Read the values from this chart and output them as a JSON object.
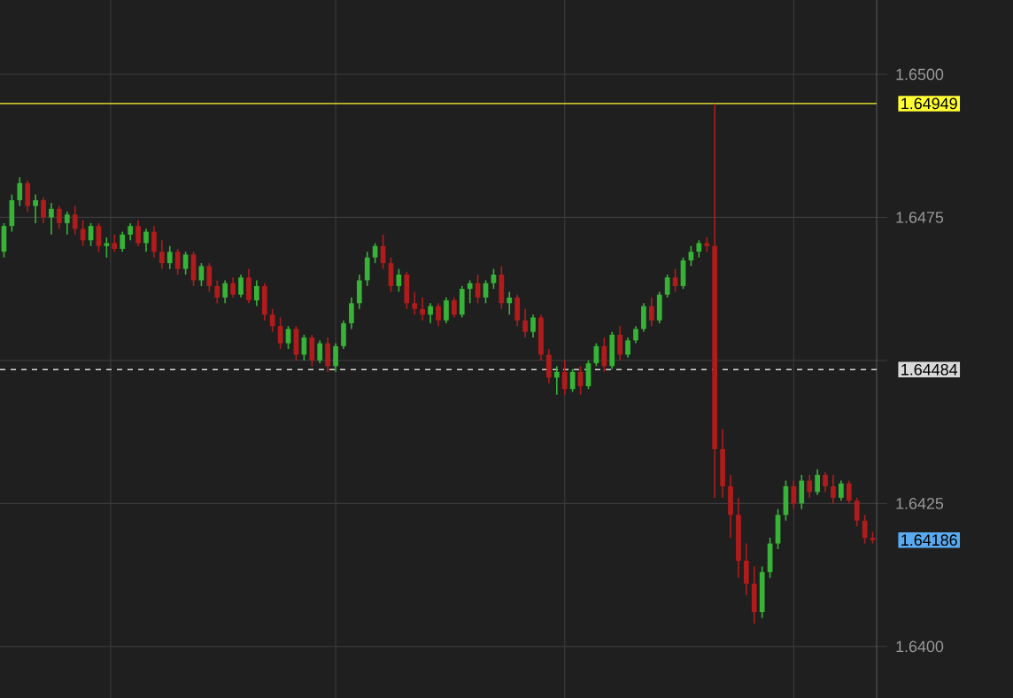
{
  "chart_data": {
    "type": "candlestick",
    "categories": [
      null,
      null,
      null,
      null,
      null,
      null,
      null,
      null,
      null,
      null,
      null,
      null,
      null,
      null,
      null,
      null,
      null,
      null,
      null,
      null,
      null,
      null,
      null,
      null,
      null,
      null,
      null,
      null,
      null,
      null,
      null,
      null,
      null,
      null,
      null,
      null,
      null,
      null,
      null,
      null,
      null,
      null,
      null,
      null,
      null,
      null,
      null,
      null,
      null,
      null,
      null,
      null,
      null,
      null,
      null,
      null,
      null,
      null,
      null,
      null,
      null,
      null,
      null,
      null,
      null,
      null,
      null,
      null,
      null,
      null,
      null,
      null,
      null,
      null,
      null,
      null,
      null,
      null,
      null,
      null,
      null,
      null,
      null,
      null,
      null,
      null,
      null,
      null,
      null,
      null,
      null,
      null,
      null,
      null,
      null,
      null,
      null,
      null,
      null,
      null,
      null,
      null,
      null,
      null,
      null,
      null,
      null,
      null,
      null,
      null,
      null
    ],
    "ohlc": [
      [
        1.6469,
        1.6474,
        1.6468,
        1.64735
      ],
      [
        1.64735,
        1.6479,
        1.64725,
        1.6478
      ],
      [
        1.6478,
        1.6482,
        1.6477,
        1.6481
      ],
      [
        1.6481,
        1.64815,
        1.6476,
        1.6477
      ],
      [
        1.6477,
        1.6479,
        1.6474,
        1.6478
      ],
      [
        1.6478,
        1.64785,
        1.6474,
        1.6475
      ],
      [
        1.6475,
        1.64775,
        1.6472,
        1.64765
      ],
      [
        1.64765,
        1.6477,
        1.6473,
        1.6474
      ],
      [
        1.6474,
        1.6476,
        1.6472,
        1.64755
      ],
      [
        1.64755,
        1.6477,
        1.6472,
        1.6473
      ],
      [
        1.6473,
        1.64745,
        1.647,
        1.6471
      ],
      [
        1.6471,
        1.6474,
        1.647,
        1.64735
      ],
      [
        1.64735,
        1.6474,
        1.6469,
        1.647
      ],
      [
        1.647,
        1.64715,
        1.6468,
        1.64705
      ],
      [
        1.64705,
        1.6472,
        1.6469,
        1.64695
      ],
      [
        1.64695,
        1.64725,
        1.6469,
        1.6472
      ],
      [
        1.6472,
        1.6474,
        1.6471,
        1.64735
      ],
      [
        1.64735,
        1.64745,
        1.647,
        1.64705
      ],
      [
        1.64705,
        1.6473,
        1.6469,
        1.64725
      ],
      [
        1.64725,
        1.64735,
        1.6468,
        1.6469
      ],
      [
        1.6469,
        1.6471,
        1.6466,
        1.6467
      ],
      [
        1.6467,
        1.647,
        1.6466,
        1.6469
      ],
      [
        1.6469,
        1.64695,
        1.6465,
        1.6466
      ],
      [
        1.6466,
        1.6469,
        1.6465,
        1.64685
      ],
      [
        1.64685,
        1.6469,
        1.6463,
        1.6464
      ],
      [
        1.6464,
        1.6467,
        1.6463,
        1.64665
      ],
      [
        1.64665,
        1.6467,
        1.6462,
        1.6463
      ],
      [
        1.6463,
        1.6464,
        1.646,
        1.6461
      ],
      [
        1.6461,
        1.6464,
        1.646,
        1.64635
      ],
      [
        1.64635,
        1.64645,
        1.6461,
        1.64615
      ],
      [
        1.64615,
        1.6465,
        1.6461,
        1.64645
      ],
      [
        1.64645,
        1.6466,
        1.646,
        1.64605
      ],
      [
        1.64605,
        1.6464,
        1.64595,
        1.6463
      ],
      [
        1.6463,
        1.64635,
        1.6457,
        1.6458
      ],
      [
        1.6458,
        1.6459,
        1.6455,
        1.6456
      ],
      [
        1.6456,
        1.64575,
        1.6452,
        1.6453
      ],
      [
        1.6453,
        1.6456,
        1.6452,
        1.64555
      ],
      [
        1.64555,
        1.6456,
        1.645,
        1.6451
      ],
      [
        1.6451,
        1.64545,
        1.645,
        1.6454
      ],
      [
        1.6454,
        1.64545,
        1.6449,
        1.645
      ],
      [
        1.645,
        1.64535,
        1.64495,
        1.6453
      ],
      [
        1.6453,
        1.6454,
        1.6448,
        1.6449
      ],
      [
        1.6449,
        1.6453,
        1.6448,
        1.64525
      ],
      [
        1.64525,
        1.6457,
        1.6452,
        1.64565
      ],
      [
        1.64565,
        1.6461,
        1.64555,
        1.646
      ],
      [
        1.646,
        1.6465,
        1.6459,
        1.6464
      ],
      [
        1.6464,
        1.6469,
        1.6463,
        1.6468
      ],
      [
        1.6468,
        1.64705,
        1.6467,
        1.647
      ],
      [
        1.647,
        1.6472,
        1.6466,
        1.6467
      ],
      [
        1.6467,
        1.6468,
        1.6462,
        1.6463
      ],
      [
        1.6463,
        1.6466,
        1.6462,
        1.6465
      ],
      [
        1.6465,
        1.64655,
        1.6459,
        1.646
      ],
      [
        1.646,
        1.6462,
        1.6458,
        1.6459
      ],
      [
        1.6459,
        1.6461,
        1.6457,
        1.6458
      ],
      [
        1.6458,
        1.646,
        1.64565,
        1.64595
      ],
      [
        1.64595,
        1.646,
        1.6456,
        1.6457
      ],
      [
        1.6457,
        1.6461,
        1.64565,
        1.64605
      ],
      [
        1.64605,
        1.6461,
        1.64575,
        1.6458
      ],
      [
        1.6458,
        1.6463,
        1.64575,
        1.64625
      ],
      [
        1.64625,
        1.6464,
        1.646,
        1.64635
      ],
      [
        1.64635,
        1.6465,
        1.646,
        1.6461
      ],
      [
        1.6461,
        1.6464,
        1.646,
        1.64635
      ],
      [
        1.64635,
        1.6466,
        1.64625,
        1.6465
      ],
      [
        1.6465,
        1.64665,
        1.6459,
        1.646
      ],
      [
        1.646,
        1.6462,
        1.6458,
        1.6461
      ],
      [
        1.6461,
        1.64615,
        1.6456,
        1.6457
      ],
      [
        1.6457,
        1.6459,
        1.6454,
        1.6455
      ],
      [
        1.6455,
        1.6458,
        1.6454,
        1.64575
      ],
      [
        1.64575,
        1.6458,
        1.645,
        1.6451
      ],
      [
        1.6451,
        1.6452,
        1.6446,
        1.6447
      ],
      [
        1.6447,
        1.6449,
        1.6444,
        1.6448
      ],
      [
        1.6448,
        1.645,
        1.6444,
        1.6445
      ],
      [
        1.6445,
        1.64485,
        1.64445,
        1.6448
      ],
      [
        1.6448,
        1.6449,
        1.6444,
        1.64455
      ],
      [
        1.64455,
        1.645,
        1.6445,
        1.64495
      ],
      [
        1.64495,
        1.6453,
        1.6449,
        1.64525
      ],
      [
        1.64525,
        1.6454,
        1.6448,
        1.6449
      ],
      [
        1.6449,
        1.6455,
        1.64485,
        1.64545
      ],
      [
        1.64545,
        1.6456,
        1.645,
        1.6451
      ],
      [
        1.6451,
        1.6454,
        1.64505,
        1.64535
      ],
      [
        1.64535,
        1.6456,
        1.6453,
        1.64555
      ],
      [
        1.64555,
        1.646,
        1.6455,
        1.64595
      ],
      [
        1.64595,
        1.6461,
        1.6456,
        1.6457
      ],
      [
        1.6457,
        1.6462,
        1.64565,
        1.64615
      ],
      [
        1.64615,
        1.6465,
        1.6461,
        1.64645
      ],
      [
        1.64645,
        1.6466,
        1.6462,
        1.6463
      ],
      [
        1.6463,
        1.6468,
        1.64625,
        1.64675
      ],
      [
        1.64675,
        1.647,
        1.64665,
        1.6469
      ],
      [
        1.6469,
        1.6471,
        1.6468,
        1.64705
      ],
      [
        1.64705,
        1.64715,
        1.6469,
        1.647
      ],
      [
        1.647,
        1.64949,
        1.6426,
        1.64345
      ],
      [
        1.64345,
        1.6438,
        1.6426,
        1.6428
      ],
      [
        1.6428,
        1.643,
        1.6419,
        1.6423
      ],
      [
        1.6423,
        1.6426,
        1.6412,
        1.6415
      ],
      [
        1.6415,
        1.6418,
        1.6409,
        1.6411
      ],
      [
        1.6411,
        1.6414,
        1.6404,
        1.6406
      ],
      [
        1.6406,
        1.6414,
        1.6405,
        1.6413
      ],
      [
        1.6413,
        1.6419,
        1.6412,
        1.6418
      ],
      [
        1.6418,
        1.6424,
        1.6417,
        1.6423
      ],
      [
        1.6423,
        1.6429,
        1.6422,
        1.6428
      ],
      [
        1.6428,
        1.6429,
        1.6424,
        1.6425
      ],
      [
        1.6425,
        1.643,
        1.6424,
        1.6429
      ],
      [
        1.6429,
        1.643,
        1.6426,
        1.6427
      ],
      [
        1.6427,
        1.6431,
        1.64265,
        1.643
      ],
      [
        1.643,
        1.64305,
        1.6427,
        1.6428
      ],
      [
        1.6428,
        1.643,
        1.6425,
        1.6426
      ],
      [
        1.6426,
        1.6429,
        1.64255,
        1.64285
      ],
      [
        1.64285,
        1.6429,
        1.6425,
        1.64255
      ],
      [
        1.64255,
        1.6426,
        1.6421,
        1.6422
      ],
      [
        1.6422,
        1.6423,
        1.6418,
        1.6419
      ],
      [
        1.6419,
        1.642,
        1.6418,
        1.64186
      ]
    ],
    "colors": [
      "#37b337",
      "#37b337",
      "#37b337",
      "#b01c1c",
      "#37b337",
      "#b01c1c",
      "#37b337",
      "#b01c1c",
      "#37b337",
      "#b01c1c",
      "#b01c1c",
      "#37b337",
      "#b01c1c",
      "#37b337",
      "#b01c1c",
      "#37b337",
      "#37b337",
      "#b01c1c",
      "#37b337",
      "#b01c1c",
      "#b01c1c",
      "#37b337",
      "#b01c1c",
      "#37b337",
      "#b01c1c",
      "#37b337",
      "#b01c1c",
      "#b01c1c",
      "#37b337",
      "#b01c1c",
      "#37b337",
      "#b01c1c",
      "#37b337",
      "#b01c1c",
      "#b01c1c",
      "#b01c1c",
      "#37b337",
      "#b01c1c",
      "#37b337",
      "#b01c1c",
      "#37b337",
      "#b01c1c",
      "#37b337",
      "#37b337",
      "#37b337",
      "#37b337",
      "#37b337",
      "#37b337",
      "#b01c1c",
      "#b01c1c",
      "#37b337",
      "#b01c1c",
      "#b01c1c",
      "#b01c1c",
      "#37b337",
      "#b01c1c",
      "#37b337",
      "#b01c1c",
      "#37b337",
      "#37b337",
      "#b01c1c",
      "#37b337",
      "#37b337",
      "#b01c1c",
      "#37b337",
      "#b01c1c",
      "#b01c1c",
      "#37b337",
      "#b01c1c",
      "#b01c1c",
      "#37b337",
      "#b01c1c",
      "#37b337",
      "#b01c1c",
      "#37b337",
      "#37b337",
      "#b01c1c",
      "#37b337",
      "#b01c1c",
      "#37b337",
      "#37b337",
      "#37b337",
      "#b01c1c",
      "#37b337",
      "#37b337",
      "#b01c1c",
      "#37b337",
      "#37b337",
      "#37b337",
      "#b01c1c",
      "#b01c1c",
      "#b01c1c",
      "#b01c1c",
      "#b01c1c",
      "#b01c1c",
      "#b01c1c",
      "#37b337",
      "#37b337",
      "#37b337",
      "#37b337",
      "#b01c1c",
      "#37b337",
      "#b01c1c",
      "#37b337",
      "#b01c1c",
      "#b01c1c",
      "#37b337",
      "#b01c1c",
      "#b01c1c",
      "#b01c1c",
      "#b01c1c"
    ],
    "ylim": [
      1.6391,
      1.6513
    ],
    "yticks": [
      {
        "value": 1.64,
        "label": "1.6400"
      },
      {
        "value": 1.6425,
        "label": "1.6425"
      },
      {
        "value": 1.645,
        "label": null
      },
      {
        "value": 1.6475,
        "label": "1.6475"
      },
      {
        "value": 1.65,
        "label": "1.6500"
      }
    ],
    "grid": true,
    "tick_labels": "y",
    "ref_lines": [
      {
        "axis": "y",
        "value": 1.64949,
        "label": "1.64949",
        "color": "#ffff33",
        "line_style": "solid"
      },
      {
        "axis": "y",
        "value": 1.64484,
        "label": "1.64484",
        "color": "#d9d9d9",
        "line_style": "dashed"
      }
    ],
    "annotations": [
      "1.64186"
    ]
  }
}
